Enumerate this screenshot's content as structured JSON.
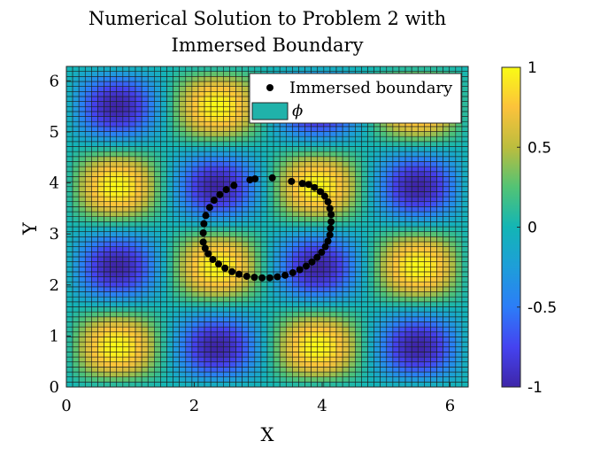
{
  "chart_data": {
    "type": "heatmap",
    "title_line1": "Numerical Solution to Problem 2 with",
    "title_line2": "Immersed Boundary",
    "xlabel": "X",
    "ylabel": "Y",
    "xlim": [
      0,
      6.2832
    ],
    "ylim": [
      0,
      6.2832
    ],
    "xticks": [
      0,
      2,
      4,
      6
    ],
    "yticks": [
      0,
      1,
      2,
      3,
      4,
      5,
      6
    ],
    "grid_cells": 64,
    "field_formula": "sin(2x) * sin(2y)",
    "field_series_name": "ϕ",
    "colormap": "parula",
    "colorbar": {
      "ticks": [
        1,
        0.5,
        0,
        -0.5,
        -1
      ],
      "tick_labels": [
        "1",
        "0.5",
        "0",
        "-0.5",
        "-1"
      ],
      "range": [
        -1,
        1
      ]
    },
    "legend": {
      "placement": "top-right",
      "entries": [
        {
          "label": "Immersed boundary",
          "marker": "dot",
          "color": "#000000"
        },
        {
          "label": "ϕ",
          "marker": "patch",
          "color": "#20b2aa"
        }
      ]
    },
    "boundary": {
      "name": "Immersed boundary",
      "center": [
        3.1416,
        3.1416
      ],
      "radius": 1.0,
      "points": [
        [
          3.52,
          4.03
        ],
        [
          3.69,
          3.99
        ],
        [
          3.79,
          3.97
        ],
        [
          3.88,
          3.91
        ],
        [
          3.97,
          3.83
        ],
        [
          4.04,
          3.74
        ],
        [
          4.09,
          3.63
        ],
        [
          4.12,
          3.5
        ],
        [
          4.14,
          3.38
        ],
        [
          4.14,
          3.24
        ],
        [
          4.13,
          3.11
        ],
        [
          4.12,
          2.98
        ],
        [
          4.09,
          2.86
        ],
        [
          4.05,
          2.75
        ],
        [
          3.99,
          2.64
        ],
        [
          3.92,
          2.54
        ],
        [
          3.84,
          2.45
        ],
        [
          3.75,
          2.37
        ],
        [
          3.65,
          2.3
        ],
        [
          3.54,
          2.24
        ],
        [
          3.42,
          2.19
        ],
        [
          3.3,
          2.16
        ],
        [
          3.18,
          2.14
        ],
        [
          3.06,
          2.14
        ],
        [
          2.94,
          2.15
        ],
        [
          2.82,
          2.17
        ],
        [
          2.7,
          2.21
        ],
        [
          2.59,
          2.26
        ],
        [
          2.48,
          2.33
        ],
        [
          2.38,
          2.41
        ],
        [
          2.29,
          2.5
        ],
        [
          2.22,
          2.61
        ],
        [
          2.17,
          2.72
        ],
        [
          2.14,
          2.84
        ],
        [
          2.14,
          3.02
        ],
        [
          2.15,
          3.2
        ],
        [
          2.18,
          3.36
        ],
        [
          2.24,
          3.52
        ],
        [
          2.31,
          3.66
        ],
        [
          2.4,
          3.77
        ],
        [
          2.5,
          3.87
        ],
        [
          2.62,
          3.95
        ],
        [
          2.87,
          4.06
        ],
        [
          2.95,
          4.08
        ],
        [
          3.22,
          4.1
        ]
      ]
    }
  }
}
